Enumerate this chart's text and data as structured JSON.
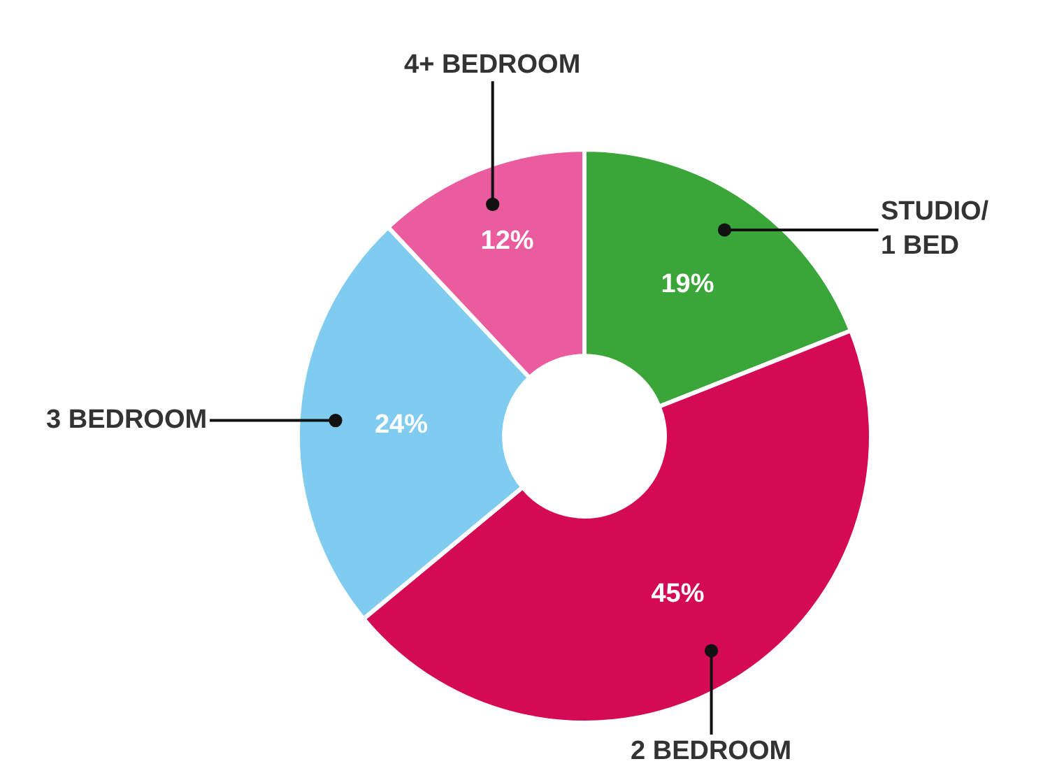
{
  "chart_data": {
    "type": "donut",
    "categories": [
      "STUDIO/\n1 BED",
      "2 BEDROOM",
      "3 BEDROOM",
      "4+ BEDROOM"
    ],
    "values": [
      19,
      45,
      24,
      12
    ],
    "colors": [
      "#3aa63a",
      "#d40a55",
      "#80ccf0",
      "#ea5c9e"
    ],
    "value_labels": [
      "19%",
      "45%",
      "24%",
      "12%"
    ],
    "legend": false
  }
}
